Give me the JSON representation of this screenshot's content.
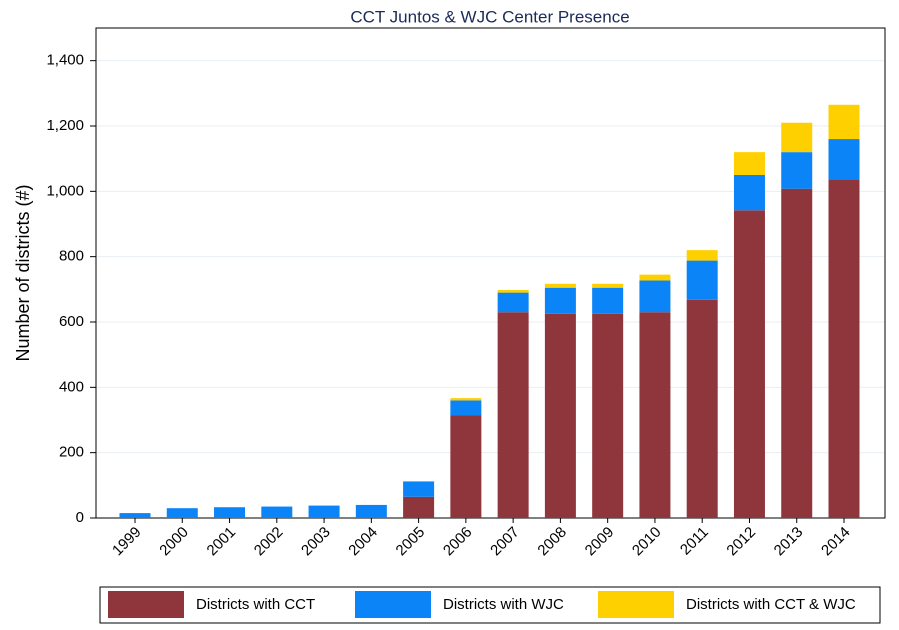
{
  "chart_data": {
    "type": "stacked_bar",
    "title": "CCT Juntos & WJC Center Presence",
    "y_label": "Number of districts (#)",
    "categories": [
      "1999",
      "2000",
      "2001",
      "2002",
      "2003",
      "2004",
      "2005",
      "2006",
      "2007",
      "2008",
      "2009",
      "2010",
      "2011",
      "2012",
      "2013",
      "2014"
    ],
    "series": [
      {
        "name": "Districts with CCT",
        "color": "#8f363d",
        "values": [
          0,
          0,
          0,
          0,
          0,
          0,
          65,
          315,
          630,
          625,
          625,
          630,
          668,
          942,
          1008,
          1037
        ]
      },
      {
        "name": "Districts with WJC",
        "color": "#0a84f6",
        "values": [
          15,
          30,
          33,
          35,
          38,
          40,
          47,
          45,
          60,
          80,
          80,
          97,
          120,
          108,
          112,
          123
        ]
      },
      {
        "name": "Districts with CCT & WJC",
        "color": "#ffd000",
        "values": [
          0,
          0,
          0,
          0,
          0,
          0,
          0,
          7,
          8,
          12,
          12,
          18,
          32,
          70,
          90,
          105
        ]
      }
    ],
    "ylim": [
      0,
      1500
    ],
    "yticks": [
      0,
      200,
      400,
      600,
      800,
      {
        "value": 1000,
        "label": "1,000"
      },
      {
        "value": 1200,
        "label": "1,200"
      },
      {
        "value": 1400,
        "label": "1,400"
      }
    ],
    "grid": true,
    "legend": "bottom"
  }
}
